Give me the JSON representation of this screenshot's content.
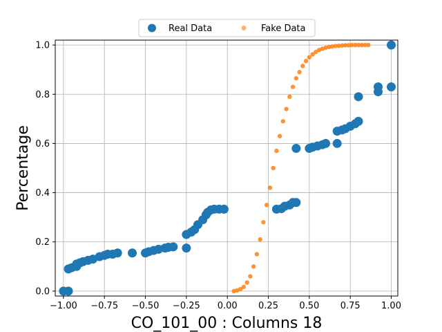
{
  "chart_data": {
    "type": "scatter",
    "title": "",
    "xlabel": "CO_101_00 : Columns 18",
    "ylabel": "Percentage",
    "xlim": [
      -1.05,
      1.04
    ],
    "ylim": [
      -0.02,
      1.02
    ],
    "grid": true,
    "legend_placement": "top-center",
    "x_ticks": [
      -1.0,
      -0.75,
      -0.5,
      -0.25,
      0.0,
      0.25,
      0.5,
      0.75,
      1.0
    ],
    "x_tick_labels": [
      "−1.00",
      "−0.75",
      "−0.50",
      "−0.25",
      "0.00",
      "0.25",
      "0.50",
      "0.75",
      "1.00"
    ],
    "y_ticks": [
      0.0,
      0.2,
      0.4,
      0.6,
      0.8,
      1.0
    ],
    "y_tick_labels": [
      "0.0",
      "0.2",
      "0.4",
      "0.6",
      "0.8",
      "1.0"
    ],
    "series": [
      {
        "name": "Real Data",
        "color": "#1f77b4",
        "marker": "large-circle",
        "x": [
          -1.0,
          -0.97,
          -0.97,
          -0.95,
          -0.92,
          -0.92,
          -0.9,
          -0.88,
          -0.85,
          -0.82,
          -0.78,
          -0.75,
          -0.73,
          -0.7,
          -0.67,
          -0.58,
          -0.5,
          -0.48,
          -0.45,
          -0.42,
          -0.38,
          -0.36,
          -0.33,
          -0.25,
          -0.25,
          -0.22,
          -0.2,
          -0.18,
          -0.15,
          -0.13,
          -0.12,
          -0.1,
          -0.08,
          -0.05,
          -0.02,
          0.3,
          0.33,
          0.35,
          0.38,
          0.4,
          0.42,
          0.42,
          0.5,
          0.52,
          0.55,
          0.58,
          0.6,
          0.67,
          0.67,
          0.7,
          0.72,
          0.75,
          0.78,
          0.8,
          0.8,
          0.92,
          0.92,
          1.0,
          1.0
        ],
        "y": [
          0.0,
          0.0,
          0.09,
          0.095,
          0.1,
          0.11,
          0.115,
          0.12,
          0.125,
          0.13,
          0.14,
          0.145,
          0.15,
          0.15,
          0.155,
          0.155,
          0.155,
          0.16,
          0.165,
          0.17,
          0.175,
          0.178,
          0.18,
          0.175,
          0.23,
          0.24,
          0.25,
          0.27,
          0.29,
          0.31,
          0.32,
          0.33,
          0.333,
          0.333,
          0.333,
          0.333,
          0.335,
          0.345,
          0.35,
          0.36,
          0.36,
          0.58,
          0.58,
          0.585,
          0.59,
          0.595,
          0.6,
          0.6,
          0.65,
          0.655,
          0.66,
          0.67,
          0.68,
          0.69,
          0.79,
          0.81,
          0.83,
          0.83,
          1.0
        ]
      },
      {
        "name": "Fake Data",
        "color": "#ff7f0e",
        "marker": "small-circle",
        "x": [
          0.04,
          0.06,
          0.08,
          0.1,
          0.12,
          0.14,
          0.16,
          0.18,
          0.2,
          0.22,
          0.24,
          0.26,
          0.28,
          0.3,
          0.32,
          0.34,
          0.36,
          0.38,
          0.4,
          0.42,
          0.44,
          0.46,
          0.48,
          0.5,
          0.52,
          0.54,
          0.56,
          0.58,
          0.6,
          0.62,
          0.64,
          0.66,
          0.68,
          0.7,
          0.72,
          0.74,
          0.76,
          0.78,
          0.8,
          0.82,
          0.84,
          0.86
        ],
        "y": [
          0.0,
          0.003,
          0.008,
          0.017,
          0.035,
          0.06,
          0.1,
          0.15,
          0.21,
          0.28,
          0.35,
          0.42,
          0.5,
          0.57,
          0.63,
          0.69,
          0.74,
          0.79,
          0.83,
          0.865,
          0.89,
          0.915,
          0.935,
          0.95,
          0.962,
          0.972,
          0.98,
          0.985,
          0.989,
          0.992,
          0.994,
          0.996,
          0.997,
          0.998,
          0.999,
          0.999,
          1.0,
          1.0,
          1.0,
          1.0,
          1.0,
          1.0
        ]
      }
    ]
  }
}
